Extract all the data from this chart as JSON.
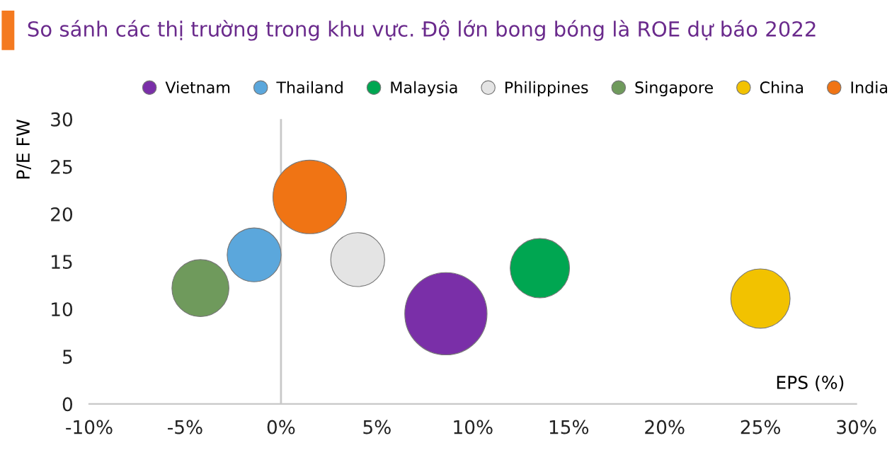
{
  "chart_data": {
    "type": "bubble",
    "title": "So sánh các thị trường trong khu vực. Độ lớn bong bóng là ROE dự báo 2022",
    "xlabel": "EPS (%)",
    "ylabel": "P/E FW",
    "series": [
      {
        "name": "Vietnam",
        "color": "#7a2fa8",
        "x": [
          8.6
        ],
        "values": [
          9.5
        ],
        "sizes": [
          1
        ]
      },
      {
        "name": "Thailand",
        "color": "#5ba7dc",
        "x": [
          -1.4
        ],
        "values": [
          15.7
        ],
        "sizes": [
          0.43
        ]
      },
      {
        "name": "Malaysia",
        "color": "#00a651",
        "x": [
          13.5
        ],
        "values": [
          14.3
        ],
        "sizes": [
          0.52
        ]
      },
      {
        "name": "Philippines",
        "color": "#e4e4e4",
        "x": [
          4.0
        ],
        "values": [
          15.2
        ],
        "sizes": [
          0.43
        ]
      },
      {
        "name": "Singapore",
        "color": "#6f9a5c",
        "x": [
          -4.2
        ],
        "values": [
          12.2
        ],
        "sizes": [
          0.48
        ]
      },
      {
        "name": "China",
        "color": "#f2c200",
        "x": [
          25.0
        ],
        "values": [
          11.1
        ],
        "sizes": [
          0.52
        ]
      },
      {
        "name": "India",
        "color": "#f07414",
        "x": [
          1.5
        ],
        "values": [
          21.8
        ],
        "sizes": [
          0.8
        ]
      }
    ],
    "xlim": [
      -10,
      30
    ],
    "xticks": [
      {
        "value": -10,
        "label": "-10%"
      },
      {
        "value": -5,
        "label": "-5%"
      },
      {
        "value": 0,
        "label": "0%"
      },
      {
        "value": 5,
        "label": "5%"
      },
      {
        "value": 10,
        "label": "10%"
      },
      {
        "value": 15,
        "label": "15%"
      },
      {
        "value": 20,
        "label": "20%"
      },
      {
        "value": 25,
        "label": "25%"
      },
      {
        "value": 30,
        "label": "30%"
      }
    ],
    "ylim": [
      0,
      30
    ],
    "yticks": [
      0,
      5,
      10,
      15,
      20,
      25,
      30
    ],
    "ref_lines": [
      {
        "axis": "x",
        "value": 0,
        "color": "#c8c8c8"
      }
    ],
    "legend": "top",
    "grid": false
  }
}
